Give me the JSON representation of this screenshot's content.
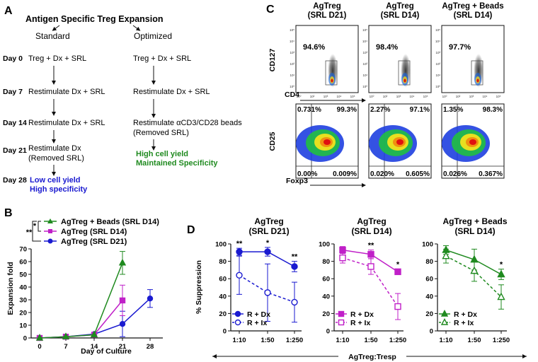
{
  "colors": {
    "blue": "#1a1ad0",
    "magenta": "#c020c8",
    "green": "#1f8a1f",
    "black": "#111111"
  },
  "panelA": {
    "letter": "A",
    "title": "Antigen Specific Treg Expansion",
    "standard_label": "Standard",
    "optimized_label": "Optimized",
    "days": [
      {
        "label": "Day 0",
        "standard": "Treg + Dx + SRL",
        "optimized": "Treg + Dx + SRL"
      },
      {
        "label": "Day 7",
        "standard": "Restimulate  Dx + SRL",
        "optimized": "Restimulate  Dx + SRL"
      },
      {
        "label": "Day 14",
        "standard": "Restimulate  Dx + SRL",
        "optimized": "Restimulate  αCD3/CD28 beads",
        "optimized2": "(Removed SRL)"
      },
      {
        "label": "Day 21",
        "standard": "Restimulate  Dx",
        "standard2": "(Removed SRL)"
      },
      {
        "label": "Day 28"
      }
    ],
    "standard_outcome": [
      "Low cell yield",
      "High specificity"
    ],
    "optimized_outcome": [
      "High cell yield",
      "Maintained Specificity"
    ]
  },
  "panelB": {
    "letter": "B",
    "ylabel": "Expansion fold",
    "xlabel": "Day of Culture",
    "sig_inner": "*",
    "sig_outer": "**"
  },
  "panelC": {
    "letter": "C",
    "columns": [
      {
        "title1": "AgTreg",
        "title2": "(SRL D21)",
        "top_pct": "94.6%",
        "q_ul": "0.731%",
        "q_ur": "99.3%",
        "q_ll": "0.00%",
        "q_lr": "0.009%"
      },
      {
        "title1": "AgTreg",
        "title2": "(SRL D14)",
        "top_pct": "98.4%",
        "q_ul": "2.27%",
        "q_ur": "97.1%",
        "q_ll": "0.020%",
        "q_lr": "0.605%"
      },
      {
        "title1": "AgTreg + Beads",
        "title2": "(SRL D14)",
        "top_pct": "97.7%",
        "q_ul": "1.35%",
        "q_ur": "98.3%",
        "q_ll": "0.026%",
        "q_lr": "0.367%"
      }
    ],
    "row1_ylabel": "CD127",
    "row1_xlabel": "CD4",
    "row2_ylabel": "CD25",
    "row2_xlabel": "Foxp3",
    "tick_labels": [
      "10⁵",
      "10⁴",
      "10³",
      "10²",
      "10¹",
      "10⁰"
    ]
  },
  "panelD": {
    "letter": "D",
    "ylabel": "% Suppression",
    "xlabel": "AgTreg:Tresp",
    "titles": [
      {
        "t1": "AgTreg",
        "t2": "(SRL D21)"
      },
      {
        "t1": "AgTreg",
        "t2": "(SRL D14)"
      },
      {
        "t1": "AgTreg + Beads",
        "t2": "(SRL D14)"
      }
    ],
    "legends": [
      {
        "a": "R + Dx",
        "b": "R + Ix"
      },
      {
        "a": "R + Dx",
        "b": "R + Ix"
      },
      {
        "a": "R + Dx",
        "b": "R + Ix"
      }
    ],
    "sig": [
      [
        "**",
        "*",
        "**"
      ],
      [
        "",
        "**",
        "*"
      ],
      [
        "",
        "",
        "*"
      ]
    ]
  },
  "chart_data": [
    {
      "type": "line",
      "title": "",
      "xlabel": "Day of Culture",
      "ylabel": "Expansion fold",
      "x": [
        0,
        7,
        14,
        21,
        28
      ],
      "xlim": [
        0,
        28
      ],
      "ylim": [
        0,
        70
      ],
      "yticks": [
        0,
        10,
        20,
        30,
        40,
        50,
        60,
        70
      ],
      "series": [
        {
          "name": "AgTreg + Beads (SRL D14)",
          "color": "#1f8a1f",
          "marker": "triangle",
          "x": [
            0,
            7,
            14,
            21
          ],
          "values": [
            0,
            1,
            2.5,
            59
          ],
          "err": [
            0.3,
            0.5,
            0.8,
            9
          ]
        },
        {
          "name": "AgTreg (SRL D14)",
          "color": "#c020c8",
          "marker": "square",
          "x": [
            0,
            7,
            14,
            21
          ],
          "values": [
            0,
            1,
            2.5,
            29.5
          ],
          "err": [
            0.3,
            0.5,
            0.8,
            12
          ]
        },
        {
          "name": "AgTreg (SRL D21)",
          "color": "#1a1ad0",
          "marker": "circle",
          "x": [
            0,
            7,
            14,
            21,
            28
          ],
          "values": [
            0,
            1,
            3,
            11,
            31
          ],
          "err": [
            0.3,
            0.5,
            0.8,
            10,
            7
          ]
        }
      ]
    },
    {
      "type": "line",
      "title": "AgTreg (SRL D21)",
      "xlabel": "AgTreg:Tresp",
      "ylabel": "% Suppression",
      "categories": [
        "1:10",
        "1:50",
        "1:250"
      ],
      "ylim": [
        0,
        100
      ],
      "yticks": [
        0,
        20,
        40,
        60,
        80,
        100
      ],
      "series": [
        {
          "name": "R + Dx",
          "color": "#1a1ad0",
          "marker": "circle",
          "filled": true,
          "values": [
            91,
            91,
            74
          ],
          "err": [
            4,
            5,
            6
          ]
        },
        {
          "name": "R + Ix",
          "color": "#1a1ad0",
          "marker": "circle",
          "filled": false,
          "values": [
            64,
            44,
            33
          ],
          "err": [
            22,
            33,
            23
          ]
        }
      ]
    },
    {
      "type": "line",
      "title": "AgTreg (SRL D14)",
      "xlabel": "AgTreg:Tresp",
      "ylabel": "% Suppression",
      "categories": [
        "1:10",
        "1:50",
        "1:250"
      ],
      "ylim": [
        0,
        100
      ],
      "yticks": [
        0,
        20,
        40,
        60,
        80,
        100
      ],
      "series": [
        {
          "name": "R + Dx",
          "color": "#c020c8",
          "marker": "square",
          "filled": true,
          "values": [
            93,
            88,
            68
          ],
          "err": [
            4,
            5,
            3
          ]
        },
        {
          "name": "R + Ix",
          "color": "#c020c8",
          "marker": "square",
          "filled": false,
          "values": [
            84,
            74,
            28
          ],
          "err": [
            6,
            9,
            15
          ]
        }
      ]
    },
    {
      "type": "line",
      "title": "AgTreg + Beads (SRL D14)",
      "xlabel": "AgTreg:Tresp",
      "ylabel": "% Suppression",
      "categories": [
        "1:10",
        "1:50",
        "1:250"
      ],
      "ylim": [
        0,
        100
      ],
      "yticks": [
        0,
        20,
        40,
        60,
        80,
        100
      ],
      "series": [
        {
          "name": "R + Dx",
          "color": "#1f8a1f",
          "marker": "triangle",
          "filled": true,
          "values": [
            93,
            82,
            65
          ],
          "err": [
            5,
            12,
            6
          ]
        },
        {
          "name": "R + Ix",
          "color": "#1f8a1f",
          "marker": "triangle",
          "filled": false,
          "values": [
            86,
            69,
            39
          ],
          "err": [
            8,
            12,
            14
          ]
        }
      ]
    }
  ]
}
